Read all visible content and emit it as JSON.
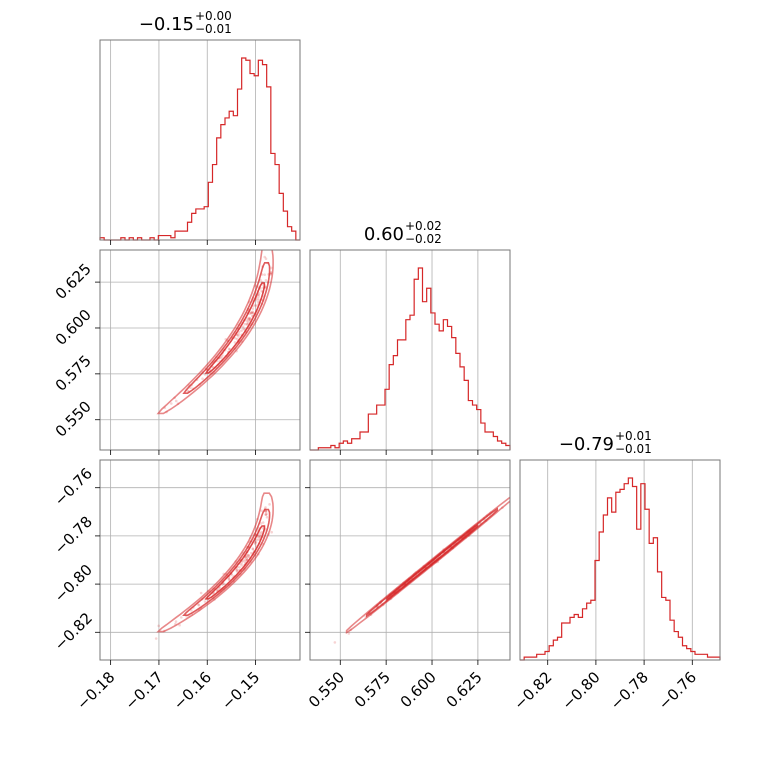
{
  "chart_data": {
    "type": "corner",
    "colors": {
      "hist": "#d62728",
      "contour": "#d62728",
      "points": "#d62728",
      "grid": "#b0b0b0",
      "frame": "#777777"
    },
    "params": [
      {
        "title": {
          "median": "−0.15",
          "plus": "+0.00",
          "minus": "−0.01"
        },
        "range": [
          -0.1822,
          -0.1408
        ],
        "ticks": [
          {
            "v": -0.18,
            "label": "−0.18"
          },
          {
            "v": -0.17,
            "label": "−0.17"
          },
          {
            "v": -0.16,
            "label": "−0.16"
          },
          {
            "v": -0.15,
            "label": "−0.15"
          }
        ],
        "hist": [
          1,
          0,
          0,
          0,
          0,
          1,
          0,
          1,
          0,
          1,
          0,
          0,
          1,
          0,
          2,
          2,
          2,
          1,
          4,
          4,
          4,
          8,
          12,
          14,
          14,
          15,
          26,
          34,
          46,
          52,
          55,
          58,
          56,
          68,
          82,
          81,
          75,
          74,
          81,
          79,
          69,
          39,
          34,
          21,
          13,
          6,
          4,
          0
        ]
      },
      {
        "title": {
          "median": "0.60",
          "plus": "+0.02",
          "minus": "−0.02"
        },
        "range": [
          0.5335,
          0.6425
        ],
        "ticks": [
          {
            "v": 0.55,
            "label": "0.550"
          },
          {
            "v": 0.575,
            "label": "0.575"
          },
          {
            "v": 0.6,
            "label": "0.600"
          },
          {
            "v": 0.625,
            "label": "0.625"
          }
        ],
        "hist": [
          0,
          0,
          1,
          1,
          1,
          2,
          1,
          3,
          4,
          3,
          5,
          5,
          8,
          8,
          16,
          16,
          20,
          20,
          27,
          38,
          42,
          49,
          49,
          58,
          60,
          76,
          81,
          66,
          72,
          61,
          56,
          53,
          58,
          55,
          50,
          43,
          37,
          31,
          22,
          20,
          18,
          12,
          8,
          8,
          6,
          4,
          3,
          2
        ]
      },
      {
        "title": {
          "median": "−0.79",
          "plus": "+0.01",
          "minus": "−0.01"
        },
        "range": [
          -0.8315,
          -0.7485
        ],
        "ticks": [
          {
            "v": -0.82,
            "label": "−0.82"
          },
          {
            "v": -0.8,
            "label": "−0.80"
          },
          {
            "v": -0.78,
            "label": "−0.78"
          },
          {
            "v": -0.76,
            "label": "−0.76"
          }
        ],
        "hist": [
          0,
          1,
          1,
          1,
          2,
          2,
          3,
          5,
          7,
          8,
          13,
          13,
          15,
          16,
          15,
          18,
          20,
          21,
          35,
          45,
          51,
          57,
          52,
          59,
          60,
          62,
          64,
          61,
          46,
          62,
          53,
          41,
          43,
          31,
          22,
          21,
          14,
          10,
          8,
          5,
          4,
          3,
          2,
          2,
          2,
          1,
          1,
          1
        ]
      }
    ]
  }
}
